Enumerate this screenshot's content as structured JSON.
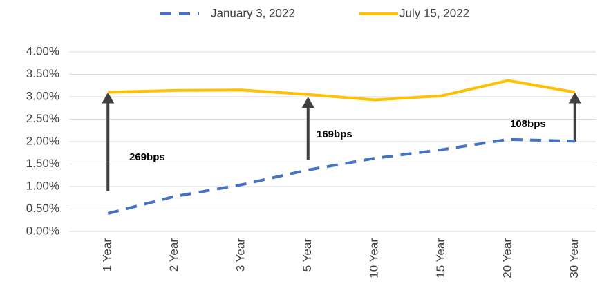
{
  "chart_data": {
    "type": "line",
    "categories": [
      "1 Year",
      "2 Year",
      "3 Year",
      "5 Year",
      "10 Year",
      "15 Year",
      "20 Year",
      "30 Year"
    ],
    "series": [
      {
        "name": "January 3, 2022",
        "color": "#4472c4",
        "dashed": true,
        "values": [
          0.4,
          0.78,
          1.04,
          1.37,
          1.63,
          1.82,
          2.05,
          2.01
        ]
      },
      {
        "name": "July 15, 2022",
        "color": "#ffc000",
        "dashed": false,
        "values": [
          3.1,
          3.14,
          3.15,
          3.05,
          2.93,
          3.02,
          3.36,
          3.1
        ]
      }
    ],
    "ylim": [
      0,
      4
    ],
    "yticks": [
      {
        "value": 0,
        "label": "0.00%"
      },
      {
        "value": 0.5,
        "label": "0.50%"
      },
      {
        "value": 1,
        "label": "1.00%"
      },
      {
        "value": 1.5,
        "label": "1.50%"
      },
      {
        "value": 2,
        "label": "2.00%"
      },
      {
        "value": 2.5,
        "label": "2.50%"
      },
      {
        "value": 3,
        "label": "3.00%"
      },
      {
        "value": 3.5,
        "label": "3.50%"
      },
      {
        "value": 4,
        "label": "4.00%"
      }
    ],
    "grid": true,
    "legend": "top",
    "annotations": [
      "269bps",
      "169bps",
      "108bps"
    ]
  }
}
